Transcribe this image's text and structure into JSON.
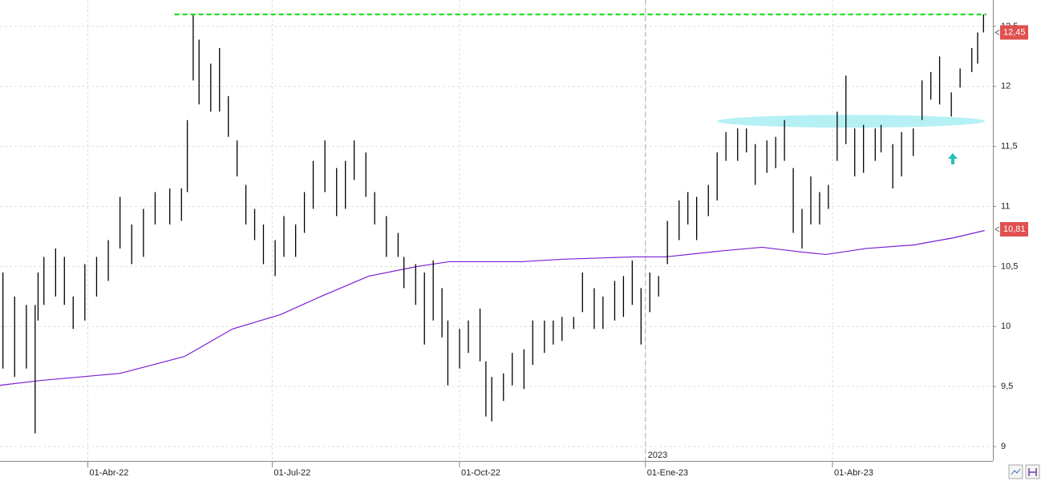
{
  "chart_data": {
    "type": "ohlc",
    "color": "#000000",
    "x": [
      1,
      5,
      9,
      12,
      13,
      15,
      19,
      22,
      25,
      29,
      33,
      37,
      41,
      45,
      49,
      53,
      58,
      62,
      64,
      66,
      68,
      72,
      75,
      78,
      81,
      84,
      87,
      90,
      94,
      97,
      101,
      104,
      107,
      111,
      115,
      118,
      121,
      125,
      128,
      132,
      136,
      138,
      142,
      145,
      148,
      151,
      153,
      157,
      160,
      164,
      166,
      168,
      172,
      175,
      179,
      182,
      186,
      189,
      192,
      196,
      199,
      203,
      206,
      210,
      213,
      216,
      219,
      222,
      225,
      228,
      232,
      235,
      238,
      242,
      245,
      248,
      252,
      255,
      258,
      262,
      265,
      268,
      271,
      274,
      277,
      280,
      283,
      286,
      289,
      292,
      295,
      299,
      301,
      305,
      308,
      312,
      315,
      318,
      321,
      325,
      328,
      332,
      334,
      336
    ],
    "high": [
      10.45,
      10.25,
      10.18,
      10.18,
      10.45,
      10.58,
      10.65,
      10.58,
      10.25,
      10.52,
      10.58,
      10.72,
      11.08,
      10.85,
      10.98,
      11.12,
      11.15,
      11.15,
      11.72,
      12.6,
      12.39,
      12.19,
      12.32,
      11.92,
      11.55,
      11.18,
      10.98,
      10.85,
      10.72,
      10.92,
      10.85,
      11.12,
      11.38,
      11.55,
      11.32,
      11.38,
      11.55,
      11.45,
      11.12,
      10.92,
      10.78,
      10.58,
      10.52,
      10.45,
      10.55,
      10.32,
      10.05,
      9.98,
      10.05,
      10.15,
      9.71,
      9.58,
      9.61,
      9.78,
      9.81,
      10.05,
      10.05,
      10.05,
      10.08,
      10.08,
      10.45,
      10.32,
      10.25,
      10.38,
      10.42,
      10.55,
      10.32,
      10.45,
      10.42,
      10.88,
      11.05,
      11.12,
      11.08,
      11.18,
      11.45,
      11.62,
      11.65,
      11.65,
      11.52,
      11.55,
      11.58,
      11.72,
      11.32,
      10.98,
      11.25,
      11.12,
      11.18,
      11.79,
      12.09,
      11.65,
      11.68,
      11.65,
      11.68,
      11.52,
      11.62,
      11.65,
      12.05,
      12.12,
      12.25,
      11.95,
      12.15,
      12.32,
      12.45,
      12.6
    ],
    "low": [
      9.65,
      9.58,
      9.65,
      9.11,
      10.05,
      10.18,
      10.25,
      10.18,
      9.98,
      10.05,
      10.25,
      10.38,
      10.65,
      10.52,
      10.58,
      10.85,
      10.85,
      10.88,
      11.12,
      12.05,
      11.85,
      11.79,
      11.79,
      11.58,
      11.25,
      10.85,
      10.72,
      10.52,
      10.42,
      10.58,
      10.58,
      10.78,
      10.98,
      11.12,
      10.92,
      10.98,
      11.22,
      11.08,
      10.85,
      10.58,
      10.58,
      10.32,
      10.18,
      9.85,
      10.05,
      9.91,
      9.51,
      9.65,
      9.78,
      9.71,
      9.25,
      9.21,
      9.38,
      9.51,
      9.48,
      9.68,
      9.78,
      9.85,
      9.88,
      9.98,
      10.12,
      9.98,
      9.98,
      10.05,
      10.08,
      10.18,
      9.85,
      10.12,
      10.25,
      10.52,
      10.72,
      10.85,
      10.72,
      10.92,
      11.05,
      11.38,
      11.38,
      11.45,
      11.18,
      11.28,
      11.32,
      11.38,
      10.78,
      10.65,
      10.85,
      10.85,
      10.98,
      11.38,
      11.52,
      11.25,
      11.28,
      11.38,
      11.45,
      11.15,
      11.25,
      11.42,
      11.72,
      11.89,
      11.85,
      11.75,
      11.99,
      12.12,
      12.19,
      12.45
    ],
    "moving_average": {
      "color": "#7b1fd1",
      "x": [
        0,
        13.7,
        41.1,
        63,
        79.5,
        95.9,
        109.6,
        126,
        142.5,
        153.4,
        178.1,
        191.8,
        216.4,
        227.4,
        246.6,
        260.3,
        274,
        282.2,
        295.9,
        312.3,
        326,
        336.4
      ],
      "values": [
        9.51,
        9.55,
        9.61,
        9.75,
        9.98,
        10.1,
        10.25,
        10.42,
        10.5,
        10.54,
        10.54,
        10.56,
        10.58,
        10.58,
        10.63,
        10.66,
        10.62,
        10.6,
        10.65,
        10.68,
        10.74,
        10.8
      ]
    },
    "resistance_line": {
      "value": 12.6,
      "color": "#22dd22"
    },
    "support_zone": {
      "value": 11.71,
      "color": "#b5f0f5"
    },
    "price_tags": [
      {
        "value": 12.45,
        "label": "12,45",
        "color": "#e05050"
      },
      {
        "value": 10.81,
        "label": "10,81",
        "color": "#e05050"
      }
    ],
    "year_marker": {
      "value": 220.5,
      "label": "2023"
    },
    "xlim": [
      0,
      339.2
    ],
    "ylim": [
      8.88,
      12.72
    ],
    "xticks": [
      {
        "value": 30,
        "label": "01-Abr-22"
      },
      {
        "value": 93,
        "label": "01-Jul-22"
      },
      {
        "value": 157,
        "label": "01-Oct-22"
      },
      {
        "value": 220.5,
        "label": "01-Ene-23"
      },
      {
        "value": 284.4,
        "label": "01-Abr-23"
      }
    ],
    "yticks": [
      9,
      {
        "value": 9.5,
        "label": "9,5"
      },
      10,
      {
        "value": 10.5,
        "label": "10,5"
      },
      11,
      {
        "value": 11.5,
        "label": "11,5"
      },
      12,
      {
        "value": 12.5,
        "label": "12,5"
      }
    ],
    "grid": true
  }
}
